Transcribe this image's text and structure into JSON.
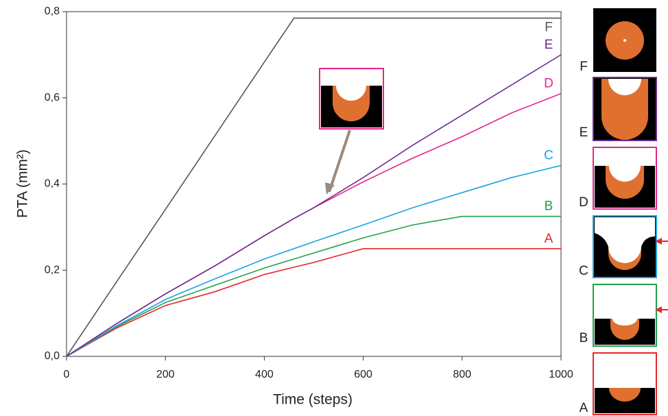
{
  "chart_data": {
    "type": "line",
    "x_label": "Time (steps)",
    "y_label": "PTA (mm²)",
    "x": [
      0,
      100,
      200,
      300,
      400,
      460,
      500,
      600,
      700,
      800,
      900,
      1000
    ],
    "series": [
      {
        "name": "A",
        "color": "#e8262a",
        "values": [
          0,
          0.065,
          0.118,
          0.15,
          0.19,
          0.207,
          0.218,
          0.25,
          0.25,
          0.25,
          0.25,
          0.25
        ]
      },
      {
        "name": "B",
        "color": "#22a04b",
        "values": [
          0,
          0.068,
          0.125,
          0.165,
          0.205,
          0.226,
          0.24,
          0.275,
          0.305,
          0.325,
          0.325,
          0.325
        ]
      },
      {
        "name": "C",
        "color": "#1aa3e0",
        "values": [
          0,
          0.07,
          0.132,
          0.18,
          0.226,
          0.25,
          0.266,
          0.305,
          0.345,
          0.38,
          0.415,
          0.443
        ]
      },
      {
        "name": "D",
        "color": "#e8228a",
        "values": [
          0,
          0.075,
          0.145,
          0.21,
          0.28,
          0.32,
          0.345,
          0.405,
          0.46,
          0.51,
          0.565,
          0.61
        ]
      },
      {
        "name": "E",
        "color": "#6a2d91",
        "values": [
          0,
          0.075,
          0.145,
          0.21,
          0.28,
          0.32,
          0.345,
          0.415,
          0.49,
          0.56,
          0.63,
          0.7
        ]
      },
      {
        "name": "F",
        "color": "#555555",
        "values": [
          0,
          0.171,
          0.341,
          0.512,
          0.683,
          0.785,
          0.785,
          0.785,
          0.785,
          0.785,
          0.785,
          0.785
        ]
      }
    ],
    "xlim": [
      0,
      1000
    ],
    "ylim": [
      0,
      0.8
    ],
    "xticks": [
      0,
      200,
      400,
      600,
      800,
      1000
    ],
    "yticks": [
      {
        "value": 0,
        "label": "0,0"
      },
      {
        "value": 0.2,
        "label": "0,2"
      },
      {
        "value": 0.4,
        "label": "0,4"
      },
      {
        "value": 0.6,
        "label": "0,6"
      },
      {
        "value": 0.8,
        "label": "0,8"
      }
    ]
  }
}
